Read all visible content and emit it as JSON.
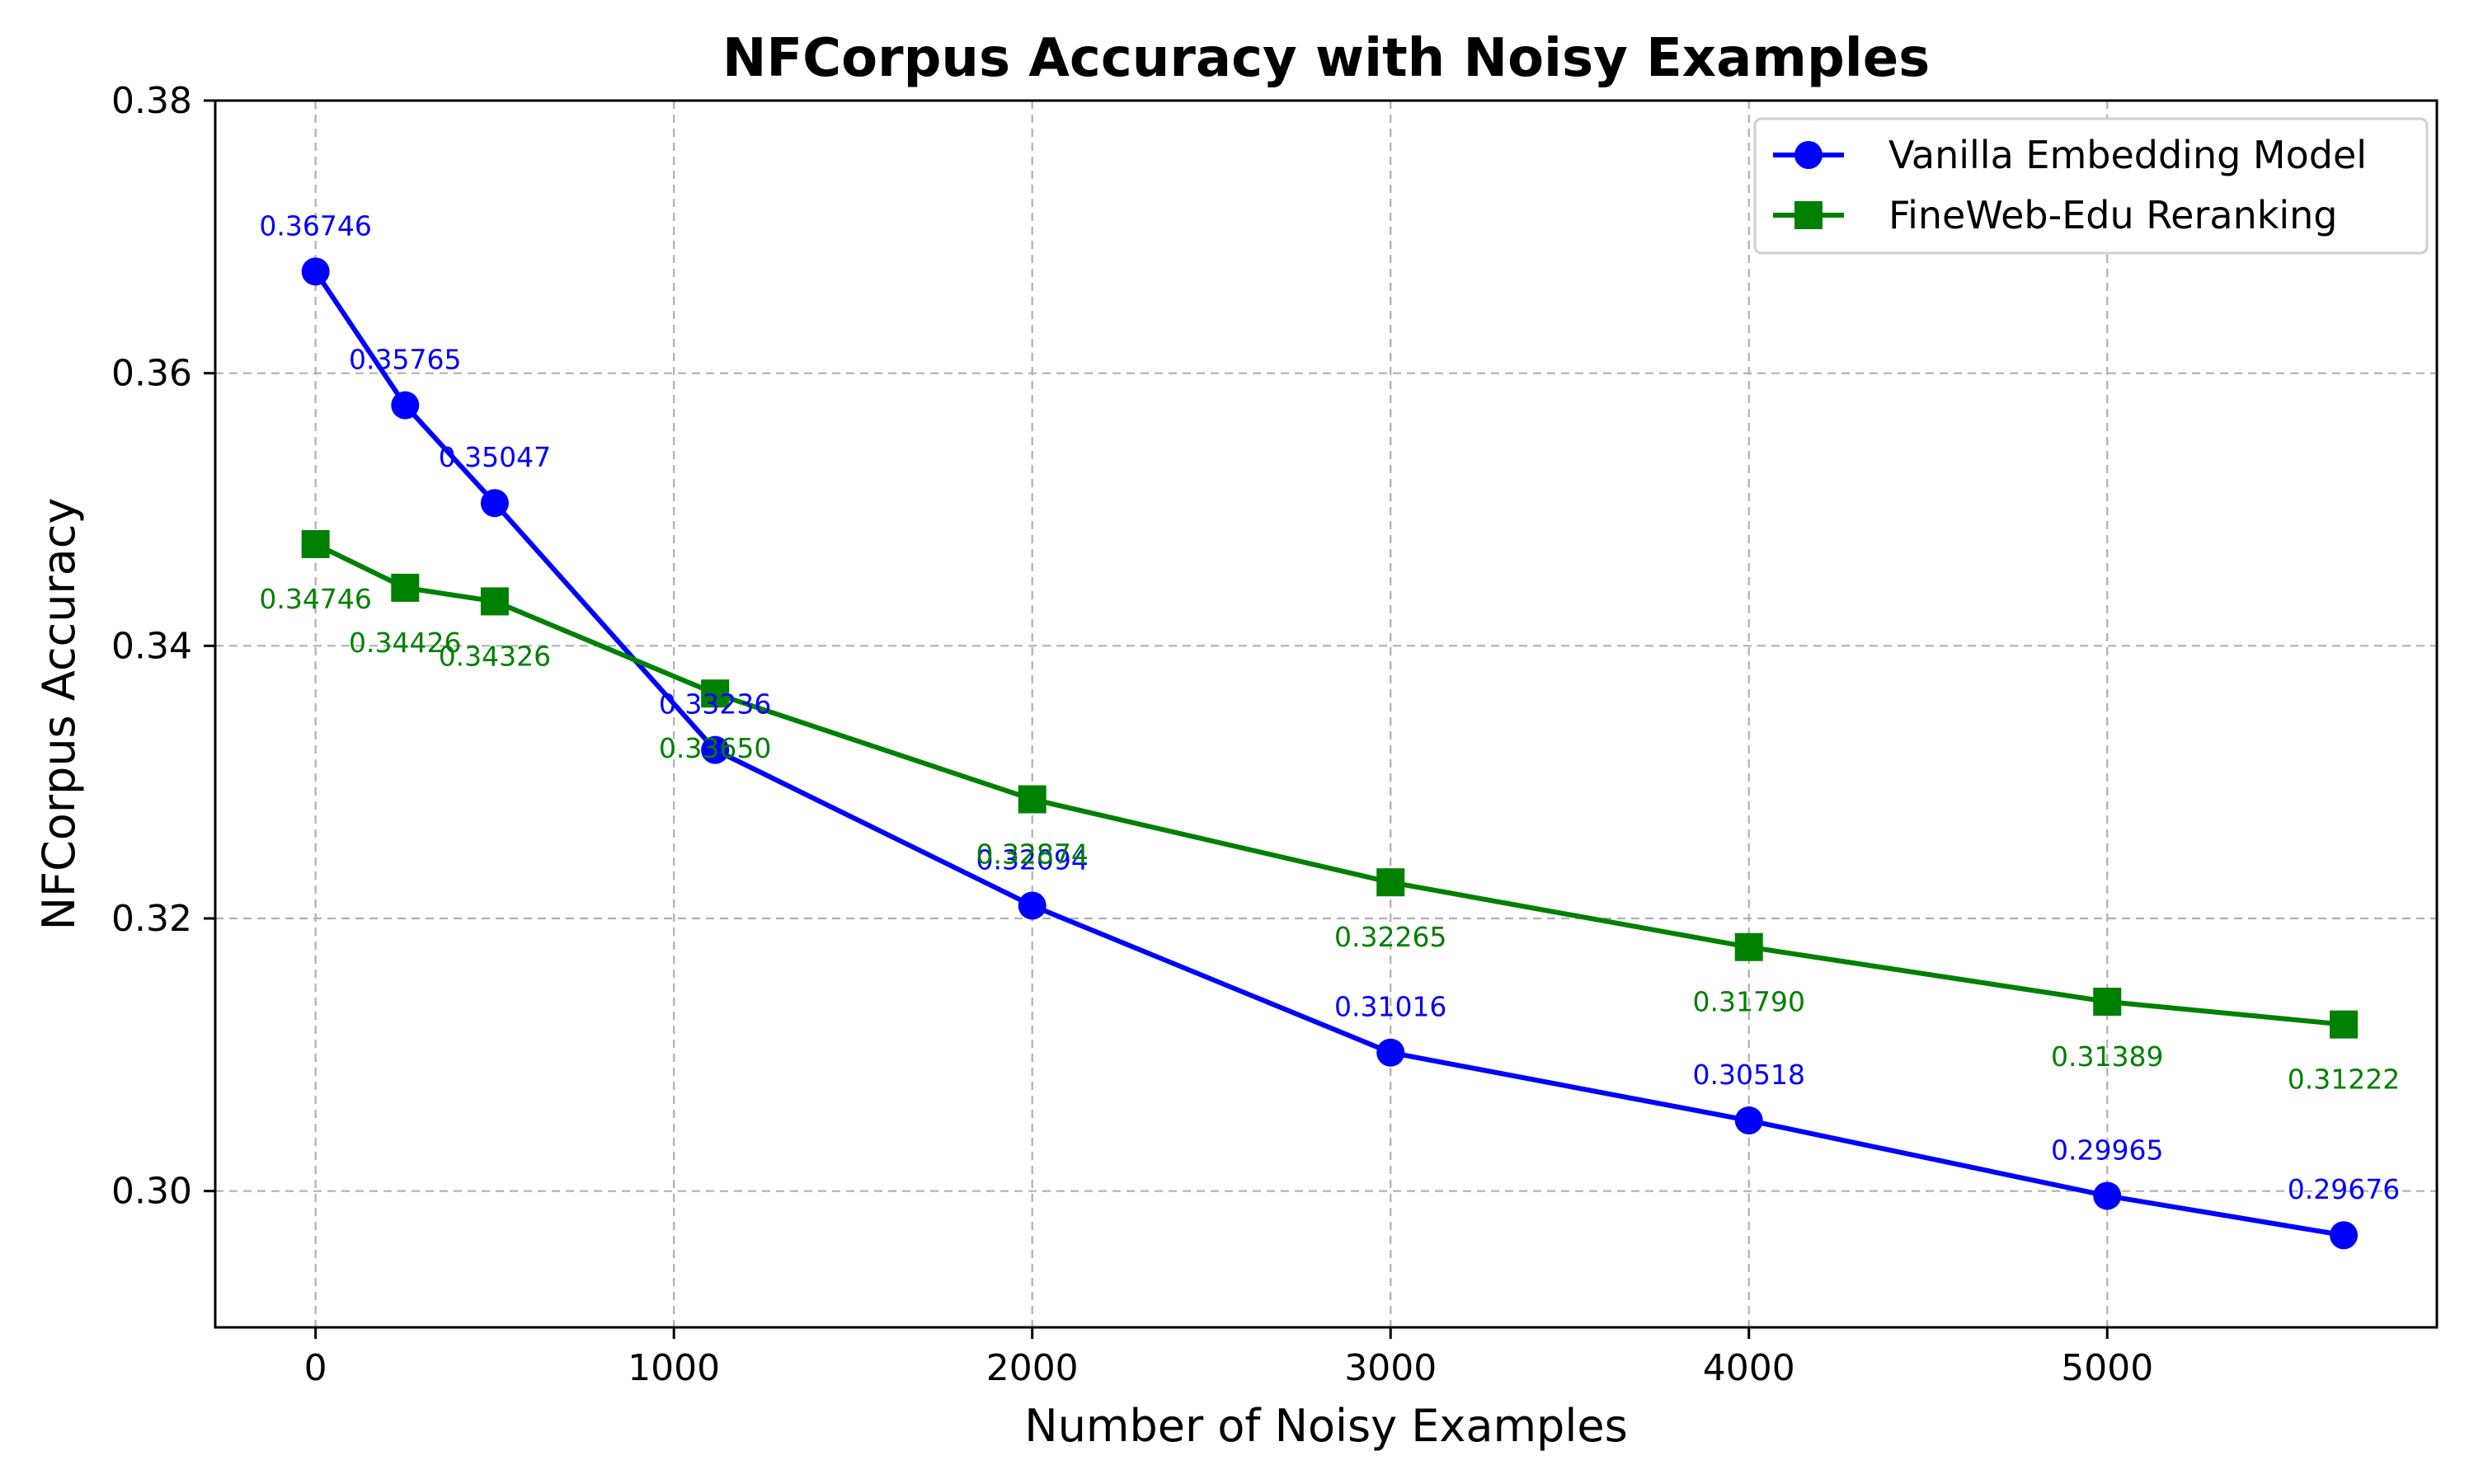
{
  "chart_data": {
    "type": "line",
    "title": "NFCorpus Accuracy with Noisy Examples",
    "xlabel": "Number of Noisy Examples",
    "ylabel": "NFCorpus Accuracy",
    "xlim": [
      -280,
      9000
    ],
    "ylim": [
      0.29,
      0.38
    ],
    "xticks": [
      0,
      1000,
      2000,
      3000,
      4000,
      5000
    ],
    "xtick_labels": [
      "0",
      "1000",
      "2000",
      "3000",
      "4000",
      "5000"
    ],
    "yticks": [
      0.3,
      0.32,
      0.34,
      0.36,
      0.38
    ],
    "ytick_labels": [
      "0.30",
      "0.32",
      "0.34",
      "0.36",
      "0.38"
    ],
    "grid": true,
    "legend_position": "top-right",
    "series": [
      {
        "name": "Vanilla Embedding Model",
        "color": "#0000ff",
        "marker": "circle",
        "x": [
          0,
          250,
          500,
          1115,
          2000,
          3000,
          4000,
          5000,
          5660
        ],
        "y": [
          0.36746,
          0.35765,
          0.35047,
          0.33236,
          0.32094,
          0.31016,
          0.30518,
          0.29965,
          0.29676
        ],
        "labels": [
          "0.36746",
          "0.35765",
          "0.35047",
          "0.33236",
          "0.32094",
          "0.31016",
          "0.30518",
          "0.29965",
          "0.29676"
        ]
      },
      {
        "name": "FineWeb-Edu Reranking",
        "color": "#008000",
        "marker": "square",
        "x": [
          0,
          250,
          500,
          1115,
          2000,
          3000,
          4000,
          5000,
          5660
        ],
        "y": [
          0.34746,
          0.34426,
          0.34326,
          0.3365,
          0.32874,
          0.32265,
          0.3179,
          0.31389,
          0.31222
        ],
        "labels": [
          "0.34746",
          "0.34426",
          "0.34326",
          "0.33650",
          "0.32874",
          "0.32265",
          "0.31790",
          "0.31389",
          "0.31222"
        ]
      }
    ]
  }
}
